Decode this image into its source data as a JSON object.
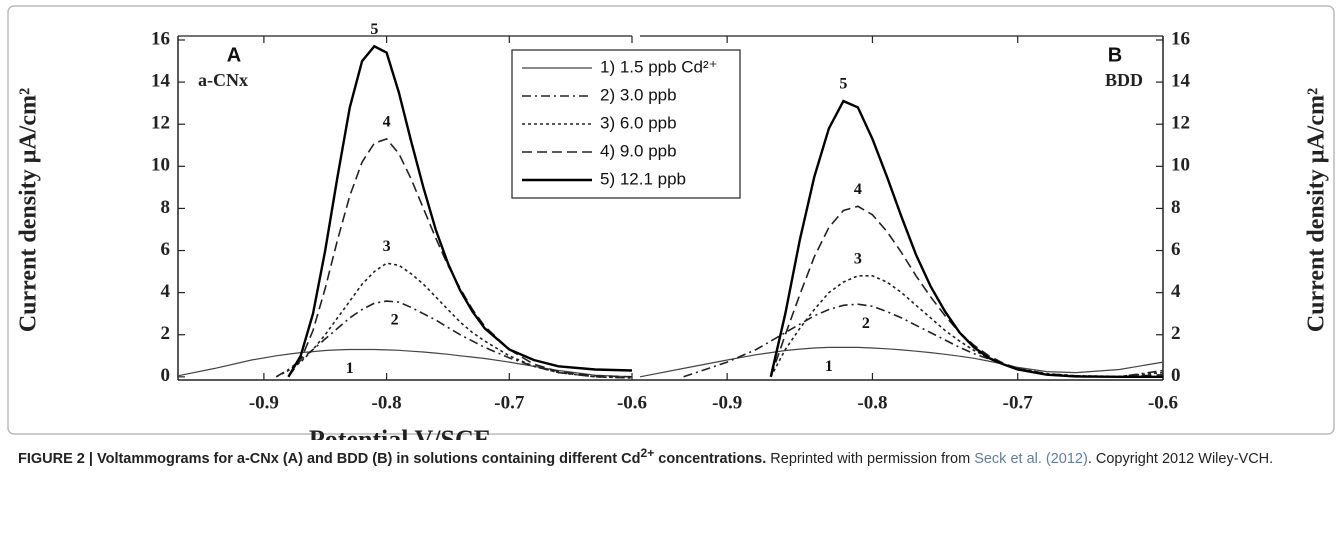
{
  "chart_data": [
    {
      "type": "line",
      "panel_label": "A",
      "annotation": "a-CNx",
      "y_label": "Current density μA/cm²",
      "x_label": "Potential V/SCE",
      "yaxis_side": "left",
      "xlim": [
        -0.97,
        -0.6
      ],
      "xticks": [
        -0.9,
        -0.8,
        -0.7,
        -0.6
      ],
      "ylim": [
        -0.15,
        16
      ],
      "yticks": [
        0,
        2,
        4,
        6,
        8,
        10,
        12,
        14,
        16
      ],
      "curve_labels": [
        "1",
        "2",
        "3",
        "4",
        "5"
      ],
      "x": [
        -0.97,
        -0.94,
        -0.91,
        -0.89,
        -0.88,
        -0.87,
        -0.86,
        -0.85,
        -0.84,
        -0.83,
        -0.82,
        -0.81,
        -0.8,
        -0.79,
        -0.78,
        -0.77,
        -0.76,
        -0.75,
        -0.74,
        -0.73,
        -0.72,
        -0.7,
        -0.68,
        -0.66,
        -0.63,
        -0.6
      ],
      "series": [
        {
          "name": "1) 1.5 ppb Cd²⁺",
          "color": "#444444",
          "linestyle": "solid",
          "linewidth": 1.2,
          "values": [
            0.05,
            0.4,
            0.8,
            1.0,
            1.08,
            1.15,
            1.2,
            1.25,
            1.28,
            1.3,
            1.3,
            1.3,
            1.28,
            1.26,
            1.22,
            1.18,
            1.13,
            1.07,
            1.0,
            0.94,
            0.87,
            0.7,
            0.5,
            0.3,
            0.08,
            0.0
          ]
        },
        {
          "name": "2) 3.0 ppb",
          "color": "#222222",
          "linestyle": "dashdot",
          "linewidth": 1.6,
          "values": [
            null,
            null,
            null,
            0,
            0.35,
            0.8,
            1.3,
            1.8,
            2.3,
            2.8,
            3.2,
            3.5,
            3.6,
            3.55,
            3.3,
            3.0,
            2.7,
            2.35,
            2.0,
            1.7,
            1.4,
            0.9,
            0.5,
            0.2,
            0.0,
            -0.05
          ]
        },
        {
          "name": "3) 6.0 ppb",
          "color": "#222222",
          "linestyle": "dotted",
          "linewidth": 1.6,
          "values": [
            null,
            null,
            null,
            0,
            0.3,
            0.7,
            1.3,
            2.0,
            2.8,
            3.6,
            4.4,
            5.0,
            5.4,
            5.3,
            4.9,
            4.4,
            3.8,
            3.2,
            2.6,
            2.1,
            1.7,
            1.0,
            0.5,
            0.2,
            0.0,
            -0.05
          ]
        },
        {
          "name": "4) 9.0 ppb",
          "color": "#222222",
          "linestyle": "dashed",
          "linewidth": 1.6,
          "values": [
            null,
            null,
            null,
            null,
            0,
            0.8,
            2.2,
            4.2,
            6.5,
            8.6,
            10.2,
            11.1,
            11.3,
            10.6,
            9.4,
            8.0,
            6.6,
            5.3,
            4.2,
            3.2,
            2.4,
            1.3,
            0.6,
            0.25,
            0.05,
            0
          ]
        },
        {
          "name": "5) 12.1 ppb",
          "color": "#000000",
          "linestyle": "solid",
          "linewidth": 2.4,
          "values": [
            null,
            null,
            null,
            null,
            0,
            1.0,
            3.0,
            6.0,
            9.5,
            12.8,
            15.0,
            15.7,
            15.4,
            13.5,
            11.2,
            9.0,
            7.0,
            5.4,
            4.1,
            3.1,
            2.3,
            1.3,
            0.8,
            0.5,
            0.35,
            0.3
          ]
        }
      ]
    },
    {
      "type": "line",
      "panel_label": "B",
      "annotation": "BDD",
      "y_label": "Current density μA/cm²",
      "yaxis_side": "right",
      "xlim": [
        -0.96,
        -0.6
      ],
      "xticks": [
        -0.9,
        -0.8,
        -0.7,
        -0.6
      ],
      "ylim": [
        -0.15,
        16
      ],
      "yticks": [
        0,
        2,
        4,
        6,
        8,
        10,
        12,
        14,
        16
      ],
      "curve_labels": [
        "1",
        "2",
        "3",
        "4",
        "5"
      ],
      "x": [
        -0.96,
        -0.93,
        -0.9,
        -0.88,
        -0.87,
        -0.86,
        -0.85,
        -0.84,
        -0.83,
        -0.82,
        -0.81,
        -0.8,
        -0.79,
        -0.78,
        -0.77,
        -0.76,
        -0.75,
        -0.74,
        -0.73,
        -0.72,
        -0.71,
        -0.7,
        -0.68,
        -0.66,
        -0.63,
        -0.6
      ],
      "series": [
        {
          "color": "#444444",
          "linestyle": "solid",
          "linewidth": 1.2,
          "values": [
            0.0,
            0.4,
            0.8,
            1.05,
            1.15,
            1.25,
            1.32,
            1.37,
            1.4,
            1.4,
            1.4,
            1.37,
            1.33,
            1.28,
            1.22,
            1.15,
            1.07,
            0.98,
            0.88,
            0.75,
            0.6,
            0.45,
            0.25,
            0.2,
            0.35,
            0.7
          ]
        },
        {
          "color": "#222222",
          "linestyle": "dashdot",
          "linewidth": 1.6,
          "values": [
            null,
            0,
            0.7,
            1.3,
            1.7,
            2.1,
            2.5,
            2.9,
            3.2,
            3.4,
            3.45,
            3.35,
            3.1,
            2.8,
            2.45,
            2.1,
            1.75,
            1.4,
            1.1,
            0.85,
            0.6,
            0.4,
            0.15,
            0.05,
            0.0,
            0.3
          ]
        },
        {
          "color": "#222222",
          "linestyle": "dotted",
          "linewidth": 1.6,
          "values": [
            null,
            null,
            null,
            null,
            0,
            1.3,
            2.3,
            3.2,
            4.0,
            4.5,
            4.8,
            4.8,
            4.5,
            4.0,
            3.4,
            2.8,
            2.2,
            1.7,
            1.25,
            0.9,
            0.6,
            0.4,
            0.15,
            0.05,
            0.02,
            0.2
          ]
        },
        {
          "color": "#222222",
          "linestyle": "dashed",
          "linewidth": 1.6,
          "values": [
            null,
            null,
            null,
            null,
            0,
            2.0,
            3.9,
            5.7,
            7.1,
            7.9,
            8.1,
            7.7,
            6.9,
            5.9,
            4.8,
            3.8,
            2.9,
            2.1,
            1.5,
            1.0,
            0.65,
            0.4,
            0.1,
            0.0,
            0.0,
            0.1
          ]
        },
        {
          "color": "#000000",
          "linestyle": "solid",
          "linewidth": 2.4,
          "values": [
            null,
            null,
            null,
            null,
            0,
            3.0,
            6.5,
            9.5,
            11.8,
            13.1,
            12.8,
            11.3,
            9.5,
            7.6,
            5.8,
            4.3,
            3.1,
            2.1,
            1.4,
            0.9,
            0.6,
            0.35,
            0.1,
            0.02,
            0.0,
            0.0
          ]
        }
      ]
    }
  ],
  "caption": {
    "bold_start": "FIGURE 2 | Voltammograms for a-CNx (A) and BDD (B) in solutions containing different Cd",
    "bold_sup": "2+",
    "bold_end": " concentrations.",
    "text_start": " Reprinted with permission from ",
    "link": "Seck et al. (2012)",
    "text_end": ". Copyright 2012 Wiley-VCH."
  }
}
